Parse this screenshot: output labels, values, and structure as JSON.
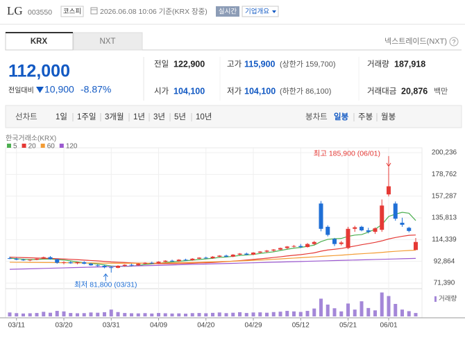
{
  "header": {
    "name": "LG",
    "code": "003550",
    "market": "코스피",
    "timestamp": "2026.06.08 10:06 기준(KRX 장중)",
    "realtime": "실시간",
    "overview": "기업개요"
  },
  "tabs": [
    "KRX",
    "NXT"
  ],
  "nxt_link": "넥스트레이드(NXT)",
  "price_block": {
    "price": "112,000",
    "change_label": "전일대비",
    "change": "10,900",
    "change_rate": "-8.87%"
  },
  "info": [
    [
      {
        "label": "전일",
        "value": "122,900"
      },
      {
        "label": "고가",
        "value": "115,900",
        "note": "(상한가 159,700)"
      },
      {
        "label": "거래량",
        "value": "187,918"
      }
    ],
    [
      {
        "label": "시가",
        "value": "104,100"
      },
      {
        "label": "저가",
        "value": "104,100",
        "note": "(하한가 86,100)"
      },
      {
        "label": "거래대금",
        "value": "20,876",
        "unit": "백만"
      }
    ]
  ],
  "period_tabs": {
    "line": [
      "선차트",
      "1일",
      "1주일",
      "3개월",
      "1년",
      "3년",
      "5년",
      "10년"
    ],
    "candle": [
      "봉차트",
      "일봉",
      "주봉",
      "월봉"
    ]
  },
  "chart_data": {
    "type": "candlestick",
    "source": "한국거래소(KRX)",
    "up_color": "#e53935",
    "down_color": "#1f6fd6",
    "categories": [
      null,
      "03/11",
      null,
      null,
      null,
      null,
      null,
      null,
      "03/20",
      null,
      null,
      null,
      null,
      null,
      null,
      "03/31",
      null,
      null,
      null,
      null,
      null,
      null,
      "04/09",
      null,
      null,
      null,
      null,
      null,
      null,
      "04/20",
      null,
      null,
      null,
      null,
      null,
      null,
      "04/29",
      null,
      null,
      null,
      null,
      null,
      null,
      "05/12",
      null,
      null,
      null,
      null,
      null,
      null,
      "05/21",
      null,
      null,
      null,
      null,
      null,
      "06/01",
      null,
      null,
      null,
      null
    ],
    "ohlc": [
      [
        96000,
        97500,
        95000,
        95500
      ],
      [
        95500,
        96500,
        94000,
        94500
      ],
      [
        94500,
        95500,
        93500,
        94000
      ],
      [
        94000,
        95000,
        93000,
        94500
      ],
      [
        94500,
        96000,
        94000,
        95500
      ],
      [
        95500,
        97500,
        95000,
        97000
      ],
      [
        97000,
        98000,
        94500,
        95000
      ],
      [
        95000,
        95500,
        90500,
        91500
      ],
      [
        91500,
        93000,
        90000,
        92000
      ],
      [
        92000,
        93000,
        90500,
        91000
      ],
      [
        91000,
        92500,
        90000,
        92000
      ],
      [
        92000,
        93000,
        90000,
        90500
      ],
      [
        90500,
        91500,
        88500,
        89000
      ],
      [
        89000,
        90000,
        87500,
        88500
      ],
      [
        88500,
        89500,
        86000,
        87000
      ],
      [
        87000,
        88000,
        81800,
        86500
      ],
      [
        86500,
        89000,
        86000,
        88500
      ],
      [
        88500,
        90000,
        87500,
        89500
      ],
      [
        89500,
        90500,
        88000,
        89000
      ],
      [
        89000,
        91000,
        88500,
        90500
      ],
      [
        90500,
        92000,
        90000,
        91500
      ],
      [
        91500,
        92500,
        90500,
        91000
      ],
      [
        91000,
        93000,
        90500,
        92500
      ],
      [
        92500,
        94000,
        92000,
        93500
      ],
      [
        93500,
        94500,
        92500,
        93000
      ],
      [
        93000,
        95000,
        92500,
        94500
      ],
      [
        94500,
        95500,
        93500,
        94000
      ],
      [
        94000,
        96000,
        93500,
        95500
      ],
      [
        95500,
        97000,
        95000,
        96500
      ],
      [
        96500,
        97500,
        95500,
        96000
      ],
      [
        96000,
        98000,
        95500,
        97500
      ],
      [
        97500,
        99000,
        97000,
        98500
      ],
      [
        98500,
        99500,
        97000,
        97500
      ],
      [
        97500,
        100000,
        97000,
        99500
      ],
      [
        99500,
        101000,
        99000,
        100500
      ],
      [
        100500,
        101500,
        99000,
        99500
      ],
      [
        99500,
        102000,
        99000,
        101500
      ],
      [
        101500,
        103000,
        101000,
        102500
      ],
      [
        102500,
        104000,
        101500,
        103500
      ],
      [
        103500,
        105000,
        102500,
        104500
      ],
      [
        104500,
        106500,
        104000,
        106000
      ],
      [
        106000,
        108000,
        105000,
        107500
      ],
      [
        107500,
        109000,
        106500,
        108000
      ],
      [
        108000,
        110000,
        106000,
        107000
      ],
      [
        107000,
        111000,
        106500,
        110000
      ],
      [
        110000,
        113000,
        109000,
        112000
      ],
      [
        150000,
        152500,
        122500,
        125000
      ],
      [
        127000,
        128500,
        117500,
        119000
      ],
      [
        115000,
        116000,
        108000,
        110000
      ],
      [
        110000,
        113000,
        108500,
        111500
      ],
      [
        106000,
        127000,
        105000,
        125000
      ],
      [
        125000,
        128000,
        122000,
        126500
      ],
      [
        127000,
        128000,
        122500,
        123500
      ],
      [
        123500,
        126000,
        120500,
        122000
      ],
      [
        122000,
        126500,
        120000,
        125500
      ],
      [
        124000,
        154000,
        122000,
        148000
      ],
      [
        159000,
        185900,
        157000,
        167000
      ],
      [
        150000,
        152000,
        133000,
        135000
      ],
      [
        131000,
        136000,
        127000,
        129000
      ],
      [
        126000,
        127000,
        121500,
        122900
      ],
      [
        104100,
        115900,
        104100,
        112000
      ]
    ],
    "series": [
      {
        "name": "5",
        "color": "#4caf50",
        "values": [
          96000,
          95500,
          95000,
          94600,
          94800,
          95100,
          95200,
          94700,
          94200,
          93300,
          92300,
          91400,
          90900,
          90200,
          89400,
          88300,
          87900,
          88000,
          88100,
          88800,
          89800,
          90300,
          90900,
          91800,
          92300,
          92900,
          93500,
          94100,
          94700,
          95300,
          95900,
          96800,
          97200,
          97800,
          98700,
          99100,
          99700,
          100700,
          101500,
          102300,
          103600,
          104800,
          105900,
          106600,
          107700,
          108900,
          112400,
          114600,
          115200,
          115500,
          117500,
          118800,
          119300,
          121700,
          124700,
          129100,
          137200,
          139500,
          141300,
          140400,
          133200
        ]
      },
      {
        "name": "20",
        "color": "#e53935",
        "values": [
          97000,
          96800,
          96600,
          96400,
          96200,
          96000,
          95800,
          95500,
          95200,
          94900,
          94500,
          94100,
          93700,
          93300,
          92800,
          92300,
          92000,
          91700,
          91400,
          91100,
          90900,
          90700,
          90600,
          90600,
          90600,
          90700,
          90800,
          91000,
          91300,
          91500,
          91800,
          92200,
          92600,
          93100,
          93600,
          94200,
          94800,
          95400,
          96000,
          96700,
          97400,
          98200,
          98900,
          99500,
          100400,
          101300,
          102900,
          104100,
          104800,
          105600,
          106800,
          108000,
          109300,
          110400,
          111600,
          113100,
          115000,
          116400,
          117600,
          118600,
          118900
        ]
      },
      {
        "name": "60",
        "color": "#f39c34",
        "values": [
          92000,
          91900,
          91900,
          91800,
          91800,
          91700,
          91700,
          91600,
          91500,
          91500,
          91400,
          91300,
          91300,
          91200,
          91100,
          91000,
          91000,
          91000,
          91000,
          91000,
          91000,
          91100,
          91200,
          91300,
          91400,
          91500,
          91600,
          91800,
          92000,
          92200,
          92400,
          92600,
          92800,
          93000,
          93300,
          93600,
          93900,
          94200,
          94500,
          94900,
          95300,
          95700,
          96100,
          96500,
          96900,
          97300,
          97800,
          98200,
          98600,
          99000,
          99500,
          100000,
          100400,
          100800,
          101200,
          101700,
          102300,
          102800,
          103200,
          103600,
          103900
        ]
      },
      {
        "name": "120",
        "color": "#9b59d0",
        "values": [
          85000,
          85180,
          85360,
          85540,
          85720,
          85900,
          86080,
          86260,
          86440,
          86620,
          86800,
          86980,
          87160,
          87340,
          87520,
          87700,
          87880,
          88060,
          88240,
          88420,
          88600,
          88780,
          88960,
          89140,
          89320,
          89500,
          89680,
          89860,
          90040,
          90220,
          90400,
          90580,
          90760,
          90940,
          91120,
          91300,
          91480,
          91660,
          91840,
          92020,
          92200,
          92380,
          92560,
          92740,
          92920,
          93100,
          93280,
          93460,
          93640,
          93820,
          94000,
          94180,
          94360,
          94540,
          94720,
          94900,
          95080,
          95260,
          95440,
          95620,
          95800
        ]
      }
    ],
    "ylim": [
      71390,
      200236
    ],
    "yticks": [
      {
        "value": 71390,
        "label": "71,390"
      },
      {
        "value": 92864,
        "label": "92,864"
      },
      {
        "value": 114339,
        "label": "114,339"
      },
      {
        "value": 135813,
        "label": "135,813"
      },
      {
        "value": 157287,
        "label": "157,287"
      },
      {
        "value": 178762,
        "label": "178,762"
      },
      {
        "value": 200236,
        "label": "200,236"
      }
    ],
    "grid": true,
    "annotations": {
      "high": "최고 185,900 (06/01)",
      "low": "최저 81,800 (03/31)"
    },
    "volume": {
      "name": "거래량",
      "color": "#a487d8",
      "vlim": [
        0,
        1900000
      ],
      "values": [
        300000,
        250000,
        220000,
        240000,
        260000,
        350000,
        280000,
        420000,
        380000,
        260000,
        240000,
        250000,
        300000,
        280000,
        320000,
        520000,
        330000,
        260000,
        240000,
        230000,
        250000,
        220000,
        260000,
        240000,
        220000,
        230000,
        210000,
        250000,
        260000,
        240000,
        270000,
        300000,
        250000,
        280000,
        320000,
        260000,
        300000,
        310000,
        280000,
        330000,
        360000,
        420000,
        380000,
        340000,
        420000,
        600000,
        1350000,
        900000,
        620000,
        380000,
        980000,
        520000,
        1150000,
        640000,
        460000,
        1820000,
        1550000,
        950000,
        520000,
        400000,
        260000
      ]
    }
  }
}
